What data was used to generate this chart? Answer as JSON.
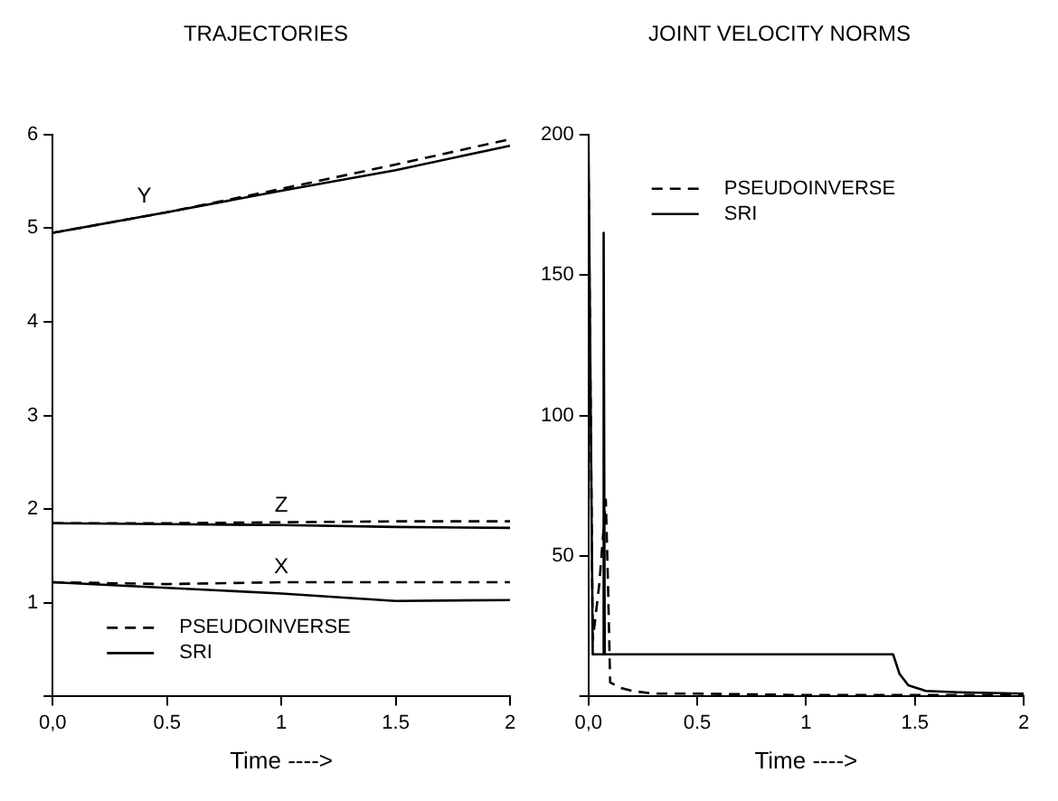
{
  "chart_data": [
    {
      "type": "line",
      "title": "TRAJECTORIES",
      "xlabel": "Time ---->",
      "xlim": [
        0,
        2
      ],
      "xticks": [
        {
          "value": 0,
          "label": "0,0"
        },
        0.5,
        1,
        1.5,
        2
      ],
      "ylim": [
        0,
        6
      ],
      "yticks": [
        {
          "value": 0,
          "label": null
        },
        1,
        2,
        3,
        4,
        5,
        6
      ],
      "legend": "bottom left",
      "marker": "none",
      "series": [
        {
          "name": "PSEUDOINVERSE",
          "color": "#000000",
          "line_style": "dashed",
          "x": [
            0,
            0.5,
            1,
            1.5,
            2
          ],
          "values": [
            4.95,
            5.17,
            5.42,
            5.68,
            5.95
          ]
        },
        {
          "name": "SRI",
          "color": "#000000",
          "line_style": "solid",
          "x": [
            0,
            0.5,
            1,
            1.5,
            2
          ],
          "values": [
            4.95,
            5.17,
            5.4,
            5.62,
            5.88
          ]
        },
        {
          "color": "#000000",
          "line_style": "dashed",
          "x": [
            0,
            0.5,
            1,
            1.5,
            2
          ],
          "values": [
            1.85,
            1.85,
            1.86,
            1.87,
            1.87
          ]
        },
        {
          "color": "#000000",
          "line_style": "solid",
          "x": [
            0,
            0.5,
            1,
            1.5,
            2
          ],
          "values": [
            1.85,
            1.84,
            1.83,
            1.81,
            1.8
          ]
        },
        {
          "color": "#000000",
          "line_style": "dashed",
          "x": [
            0,
            0.5,
            1,
            1.5,
            2
          ],
          "values": [
            1.22,
            1.2,
            1.22,
            1.22,
            1.22
          ]
        },
        {
          "color": "#000000",
          "line_style": "solid",
          "x": [
            0,
            0.5,
            1,
            1.5,
            2
          ],
          "values": [
            1.22,
            1.16,
            1.1,
            1.02,
            1.03
          ]
        }
      ],
      "annotations": [
        "Y",
        "Z",
        "X"
      ]
    },
    {
      "type": "line",
      "title": "JOINT VELOCITY NORMS",
      "xlabel": "Time ---->",
      "xlim": [
        0,
        2
      ],
      "xticks": [
        {
          "value": 0,
          "label": "0,0"
        },
        0.5,
        1,
        1.5,
        2
      ],
      "ylim": [
        0,
        200
      ],
      "yticks": [
        {
          "value": 0,
          "label": null
        },
        50,
        100,
        150,
        200
      ],
      "legend": "top",
      "marker": "none",
      "series": [
        {
          "name": "PSEUDOINVERSE",
          "color": "#000000",
          "line_style": "dashed",
          "x": [
            0,
            0.02,
            0.05,
            0.08,
            0.09,
            0.1,
            0.15,
            0.2,
            0.3,
            0.5,
            1,
            1.5,
            2
          ],
          "values": [
            190,
            20,
            40,
            70,
            40,
            5,
            3,
            2,
            1,
            1,
            0.5,
            0.5,
            0.5
          ]
        },
        {
          "name": "SRI",
          "color": "#000000",
          "line_style": "solid",
          "x": [
            0,
            0.02,
            0.065,
            0.07,
            0.075,
            0.5,
            1,
            1.4,
            1.43,
            1.47,
            1.55,
            1.7,
            2
          ],
          "values": [
            200,
            15,
            15,
            165,
            15,
            15,
            15,
            15,
            8,
            4,
            2,
            1.5,
            1
          ]
        }
      ]
    }
  ]
}
